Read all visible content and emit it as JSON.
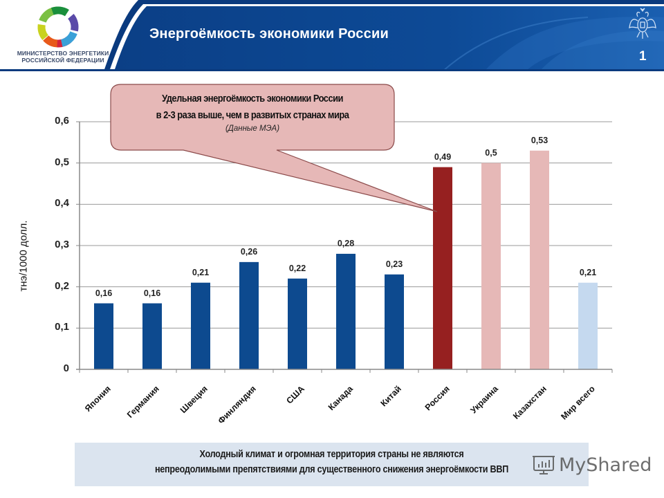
{
  "header": {
    "title": "Энергоёмкость экономики России",
    "page_number": "1",
    "ministry_line1": "МИНИСТЕРСТВО ЭНЕРГЕТИКИ",
    "ministry_line2": "РОССИЙСКОЙ ФЕДЕРАЦИИ",
    "logo_icon": "ministry-ring-logo-icon",
    "emblem_icon": "double-headed-eagle-icon",
    "colors": {
      "banner": "#0d4a96",
      "banner_dark": "#0a3a7e",
      "accent_line": "#ffffff"
    }
  },
  "callout": {
    "line1": "Удельная энергоёмкость экономики России",
    "line2": "в 2-3 раза выше, чем в развитых странах мира",
    "source": "(Данные МЭА)",
    "fill": "#e6b8b7",
    "border": "#8b4a4a"
  },
  "footer": {
    "line1": "Холодный климат и огромная территория страны не являются",
    "line2": "непреодолимыми препятствиями для существенного снижения энергоёмкости ВВП",
    "background": "#dbe4ef"
  },
  "watermark": {
    "text": "MyShared"
  },
  "chart_data": {
    "type": "bar",
    "title": "",
    "xlabel": "",
    "ylabel": "тнэ/1000 долл.",
    "ylim": [
      0,
      0.6
    ],
    "yticks": [
      "0",
      "0,1",
      "0,2",
      "0,3",
      "0,4",
      "0,5",
      "0,6"
    ],
    "grid": true,
    "legend": "none",
    "categories": [
      "Япония",
      "Германия",
      "Швеция",
      "Финляндия",
      "США",
      "Канада",
      "Китай",
      "Россия",
      "Украина",
      "Казахстан",
      "Мир всего"
    ],
    "values": [
      0.16,
      0.16,
      0.21,
      0.26,
      0.22,
      0.28,
      0.23,
      0.49,
      0.5,
      0.53,
      0.21
    ],
    "value_labels": [
      "0,16",
      "0,16",
      "0,21",
      "0,26",
      "0,22",
      "0,28",
      "0,23",
      "0,49",
      "0,5",
      "0,53",
      "0,21"
    ],
    "bar_colors": [
      "#0d4a8f",
      "#0d4a8f",
      "#0d4a8f",
      "#0d4a8f",
      "#0d4a8f",
      "#0d4a8f",
      "#0d4a8f",
      "#962020",
      "#e6b8b7",
      "#e6b8b7",
      "#c5d9ef"
    ],
    "annotations": [
      "Удельная энергоёмкость экономики России в 2-3 раза выше, чем в развитых странах мира (Данные МЭА)"
    ]
  }
}
